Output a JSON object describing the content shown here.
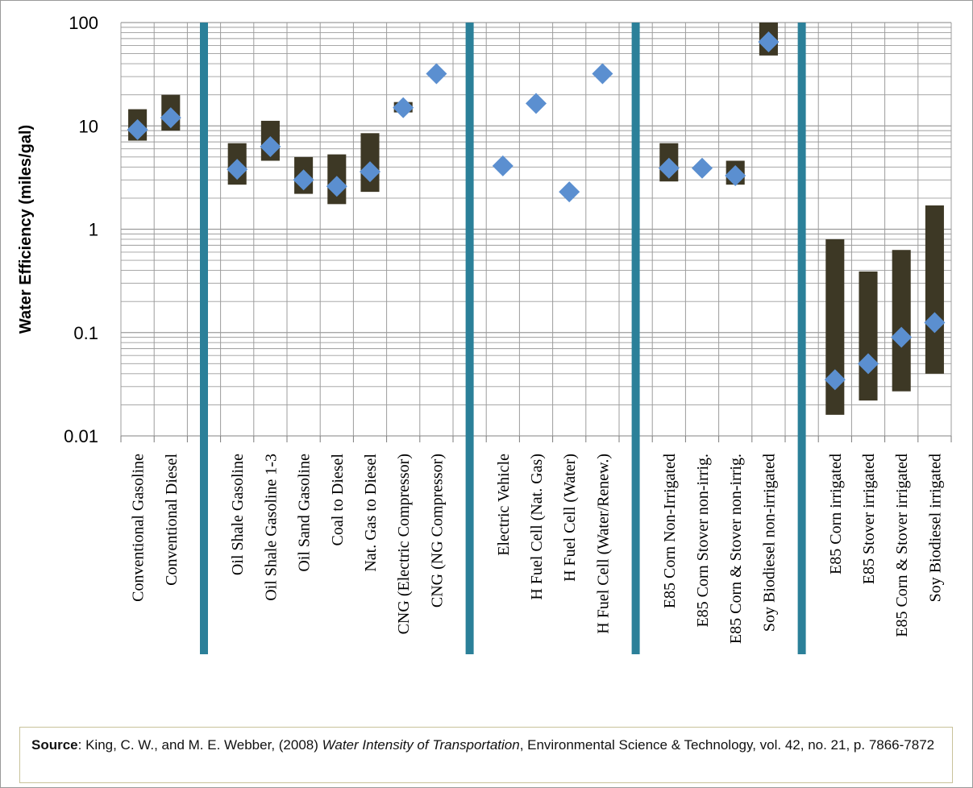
{
  "chart_data": {
    "type": "range-scatter",
    "ylabel": "Water Efficiency (miles/gal)",
    "yscale": "log",
    "ylim": [
      0.01,
      100
    ],
    "yticks": [
      {
        "value": 100,
        "label": "100"
      },
      {
        "value": 10,
        "label": "10"
      },
      {
        "value": 1,
        "label": "1"
      },
      {
        "value": 0.1,
        "label": "0.1"
      },
      {
        "value": 0.01,
        "label": "0.01"
      }
    ],
    "grid": true,
    "colors": {
      "range_bar": "#3d3825",
      "marker": "#5b8fd0",
      "divider": "#2b8099",
      "grid": "#9c9c9c"
    },
    "groups": [
      {
        "items": [
          {
            "category": "Conventional Gasoline",
            "value": 9.2,
            "low": 7.2,
            "high": 14.5
          },
          {
            "category": "Conventional Diesel",
            "value": 12,
            "low": 9,
            "high": 20
          }
        ]
      },
      {
        "items": [
          {
            "category": "Oil Shale Gasoline",
            "value": 3.8,
            "low": 2.7,
            "high": 6.8
          },
          {
            "category": "Oil Shale Gasoline 1-3",
            "value": 6.3,
            "low": 4.6,
            "high": 11.2
          },
          {
            "category": "Oil Sand Gasoline",
            "value": 3.0,
            "low": 2.2,
            "high": 5.0
          },
          {
            "category": "Coal to Diesel",
            "value": 2.6,
            "low": 1.75,
            "high": 5.3
          },
          {
            "category": "Nat. Gas to Diesel",
            "value": 3.6,
            "low": 2.3,
            "high": 8.5
          },
          {
            "category": "CNG (Electric Compressor)",
            "value": 15,
            "low": 13.5,
            "high": 17
          },
          {
            "category": "CNG (NG Compressor)",
            "value": 32
          }
        ]
      },
      {
        "items": [
          {
            "category": "Electric Vehicle",
            "value": 4.1
          },
          {
            "category": "H Fuel Cell (Nat. Gas)",
            "value": 16.5
          },
          {
            "category": "H Fuel Cell (Water)",
            "value": 2.3
          },
          {
            "category": "H Fuel Cell (Water/Renew.)",
            "value": 32
          }
        ]
      },
      {
        "items": [
          {
            "category": "E85 Corn Non-Irrigated",
            "value": 3.9,
            "low": 2.9,
            "high": 6.8
          },
          {
            "category": "E85 Corn Stover non-irrig.",
            "value": 3.9
          },
          {
            "category": "E85 Corn & Stover non-irrig.",
            "value": 3.3,
            "low": 2.7,
            "high": 4.6
          },
          {
            "category": "Soy Biodiesel non-irrigated",
            "value": 65,
            "low": 48,
            "high": 100
          }
        ]
      },
      {
        "items": [
          {
            "category": "E85 Corn irrigated",
            "value": 0.035,
            "low": 0.016,
            "high": 0.8
          },
          {
            "category": "E85 Stover irrigated",
            "value": 0.05,
            "low": 0.022,
            "high": 0.39
          },
          {
            "category": "E85 Corn & Stover irrigated",
            "value": 0.09,
            "low": 0.027,
            "high": 0.63
          },
          {
            "category": "Soy Biodiesel irrigated",
            "value": 0.125,
            "low": 0.04,
            "high": 1.7
          }
        ]
      }
    ]
  },
  "source": {
    "label": "Source",
    "before_title": ": King, C. W., and M. E. Webber, (2008) ",
    "title": "Water Intensity of Transportation",
    "after_title": ", Environmental Science & Technology, vol. 42, no. 21, p. 7866-7872"
  }
}
